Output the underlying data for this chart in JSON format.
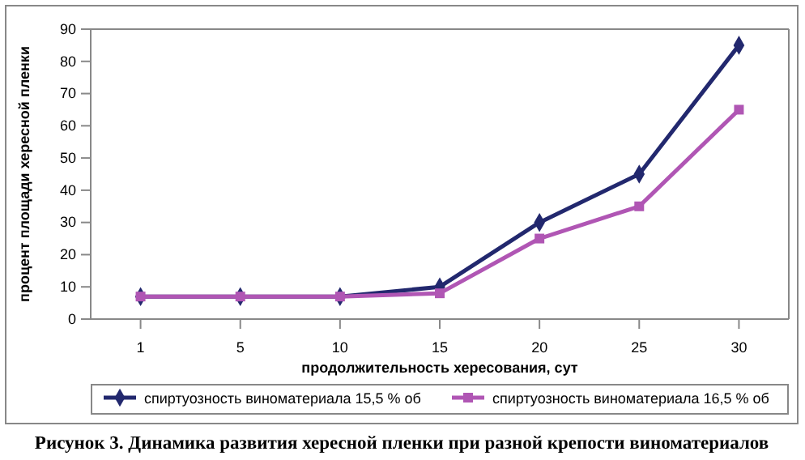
{
  "chart_data": {
    "type": "line",
    "title": "Рисунок 3. Динамика развития хересной пленки при разной крепости виноматериалов",
    "xlabel": "продолжительность хересования, сут",
    "ylabel": "процент площади хересной пленки",
    "categories": [
      "1",
      "5",
      "10",
      "15",
      "20",
      "25",
      "30"
    ],
    "series": [
      {
        "name": "спиртуозность виноматериала 15,5 % об",
        "color": "#22286e",
        "marker": "diamond",
        "values": [
          7,
          7,
          7,
          10,
          30,
          45,
          85
        ]
      },
      {
        "name": "спиртуозность виноматериала 16,5 % об",
        "color": "#b056b4",
        "marker": "square",
        "values": [
          7,
          7,
          7,
          8,
          25,
          35,
          65
        ]
      }
    ],
    "ylim": [
      0,
      90
    ],
    "yticks": [
      0,
      10,
      20,
      30,
      40,
      50,
      60,
      70,
      80,
      90
    ],
    "grid": false,
    "legend": "bottom"
  }
}
